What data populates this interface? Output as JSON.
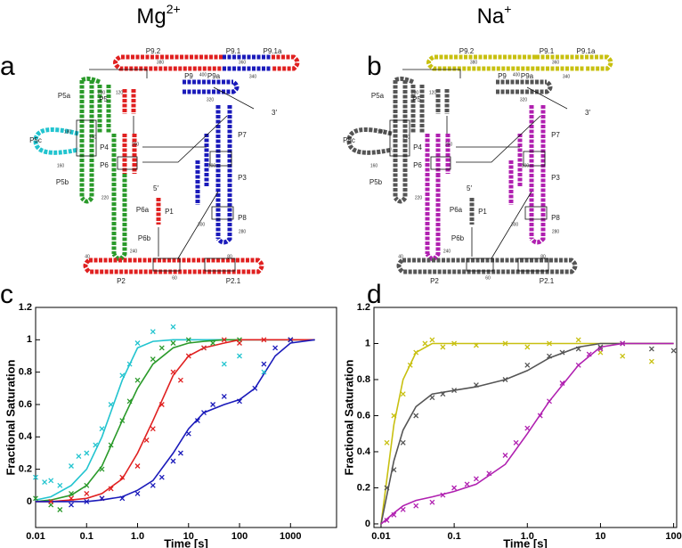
{
  "panels": [
    {
      "label": "a",
      "title": {
        "base": "Mg",
        "sup": "2+"
      },
      "labels": [
        "P9.2",
        "P9.1",
        "P9.1a",
        "P5a",
        "P5",
        "P5c",
        "P4",
        "P6",
        "P5b",
        "P6a",
        "P6b",
        "P9",
        "P9a",
        "P7",
        "P3",
        "P8",
        "P1",
        "5′",
        "3′",
        "P2",
        "P2.1",
        "380",
        "360",
        "400",
        "340",
        "320",
        "200",
        "120",
        "180",
        "140",
        "160",
        "260",
        "220",
        "300",
        "280",
        "240",
        "40",
        "60",
        "80",
        "100"
      ]
    },
    {
      "label": "b",
      "title": {
        "base": "Na",
        "sup": "+"
      },
      "labels": [
        "P9.2",
        "P9.1",
        "P9.1a",
        "P5a",
        "P5",
        "P5c",
        "P4",
        "P6",
        "P5b",
        "P6a",
        "P6b",
        "P9",
        "P9a",
        "P7",
        "P3",
        "P8",
        "P1",
        "5′",
        "3′",
        "P2",
        "P2.1",
        "380",
        "360",
        "400",
        "340",
        "320",
        "200",
        "120",
        "180",
        "140",
        "160",
        "260",
        "220",
        "300",
        "280",
        "240",
        "40",
        "60",
        "80",
        "100"
      ]
    }
  ],
  "chart_data": [
    {
      "type": "scatter",
      "panel": "c",
      "x_label": "Time [s]",
      "y_label": "Fractional Saturation",
      "xscale": "log",
      "xlim": [
        0.01,
        8000
      ],
      "ylim": [
        -0.16,
        1.2
      ],
      "xticks": [
        0.01,
        0.1,
        {
          "value": 1,
          "label": "1.0"
        },
        10,
        100,
        1000
      ],
      "yticks": [
        0,
        0.2,
        0.4,
        0.6,
        0.8,
        1,
        1.2
      ],
      "series": [
        {
          "color": "#22c4cf",
          "style": "line",
          "x": [
            0.01,
            0.02,
            0.05,
            0.1,
            0.2,
            0.5,
            1,
            2,
            5,
            10,
            20,
            50,
            100,
            200,
            500,
            1000,
            3000
          ],
          "values": [
            0.01,
            0.03,
            0.1,
            0.2,
            0.4,
            0.75,
            0.95,
            0.99,
            1,
            1,
            1,
            1,
            1,
            1,
            1,
            1,
            1
          ]
        },
        {
          "color": "#2a9a2a",
          "style": "line",
          "x": [
            0.01,
            0.02,
            0.05,
            0.1,
            0.2,
            0.5,
            1,
            2,
            5,
            10,
            20,
            50,
            100,
            200,
            500,
            1000,
            3000
          ],
          "values": [
            0,
            0.01,
            0.04,
            0.1,
            0.22,
            0.5,
            0.7,
            0.85,
            0.95,
            0.98,
            0.99,
            1,
            1,
            1,
            1,
            1,
            1
          ]
        },
        {
          "color": "#e02020",
          "style": "line",
          "x": [
            0.01,
            0.02,
            0.05,
            0.1,
            0.2,
            0.5,
            1,
            2,
            5,
            10,
            20,
            50,
            100,
            200,
            500,
            1000,
            3000
          ],
          "values": [
            0,
            0,
            0.01,
            0.02,
            0.05,
            0.14,
            0.3,
            0.5,
            0.78,
            0.9,
            0.95,
            0.98,
            1,
            1,
            1,
            1,
            1
          ]
        },
        {
          "color": "#1a1aba",
          "style": "line",
          "x": [
            0.01,
            0.02,
            0.05,
            0.1,
            0.2,
            0.5,
            1,
            2,
            5,
            10,
            20,
            50,
            100,
            200,
            500,
            1000,
            3000
          ],
          "values": [
            0,
            0,
            0,
            0,
            0.01,
            0.03,
            0.07,
            0.13,
            0.3,
            0.45,
            0.55,
            0.6,
            0.63,
            0.7,
            0.9,
            0.98,
            1
          ]
        },
        {
          "color": "#22c4cf",
          "style": "marker",
          "x": [
            0.01,
            0.015,
            0.02,
            0.03,
            0.05,
            0.07,
            0.1,
            0.15,
            0.2,
            0.3,
            0.5,
            0.7,
            1,
            2,
            5,
            20,
            50,
            100,
            300,
            1000
          ],
          "values": [
            0.15,
            0.12,
            0.13,
            0.1,
            0.22,
            0.28,
            0.3,
            0.35,
            0.45,
            0.6,
            0.78,
            0.85,
            0.98,
            1.05,
            1.08,
            0.95,
            0.85,
            0.9,
            0.8,
            1
          ]
        },
        {
          "color": "#2a9a2a",
          "style": "marker",
          "x": [
            0.01,
            0.02,
            0.03,
            0.05,
            0.1,
            0.2,
            0.3,
            0.5,
            0.7,
            1,
            2,
            3,
            5,
            10,
            30,
            100,
            1000
          ],
          "values": [
            0.02,
            -0.02,
            -0.05,
            0.05,
            0.1,
            0.2,
            0.35,
            0.5,
            0.62,
            0.75,
            0.88,
            0.95,
            0.98,
            1,
            0.98,
            1,
            1
          ]
        },
        {
          "color": "#e02020",
          "style": "marker",
          "x": [
            0.02,
            0.05,
            0.1,
            0.2,
            0.3,
            0.5,
            1,
            1.5,
            2,
            3,
            5,
            7,
            10,
            20,
            50,
            100,
            300,
            1000
          ],
          "values": [
            0,
            0.02,
            0.05,
            0.02,
            0.08,
            0.15,
            0.22,
            0.38,
            0.45,
            0.6,
            0.8,
            0.75,
            0.9,
            0.95,
            1,
            0.98,
            1,
            1
          ]
        },
        {
          "color": "#1a1aba",
          "style": "marker",
          "x": [
            0.05,
            0.1,
            0.2,
            0.5,
            1,
            2,
            3,
            5,
            7,
            10,
            15,
            20,
            30,
            50,
            100,
            200,
            300,
            500,
            1000
          ],
          "values": [
            -0.02,
            0,
            0.02,
            0.02,
            0.05,
            0.1,
            0.15,
            0.25,
            0.3,
            0.42,
            0.5,
            0.55,
            0.6,
            0.65,
            0.62,
            0.7,
            0.85,
            0.95,
            1
          ]
        }
      ]
    },
    {
      "type": "scatter",
      "panel": "d",
      "x_label": "Time [s]",
      "y_label": "Fractional Saturation",
      "xscale": "log",
      "xlim": [
        0.008,
        110
      ],
      "ylim": [
        -0.02,
        1.2
      ],
      "xticks": [
        0.01,
        0.1,
        {
          "value": 1,
          "label": "1.0"
        },
        10,
        100
      ],
      "yticks": [
        0,
        0.2,
        0.4,
        0.6,
        0.8,
        1,
        1.2
      ],
      "series": [
        {
          "color": "#c8c010",
          "style": "line",
          "x": [
            0.01,
            0.015,
            0.02,
            0.03,
            0.05,
            0.1,
            0.2,
            0.5,
            1,
            2,
            5,
            10,
            20,
            50,
            100
          ],
          "values": [
            0,
            0.55,
            0.8,
            0.95,
            1,
            1,
            1,
            1,
            1,
            1,
            1,
            1,
            1,
            1,
            1
          ]
        },
        {
          "color": "#555555",
          "style": "line",
          "x": [
            0.01,
            0.015,
            0.02,
            0.03,
            0.05,
            0.1,
            0.2,
            0.5,
            1,
            2,
            5,
            10,
            20,
            50,
            100
          ],
          "values": [
            0,
            0.35,
            0.52,
            0.65,
            0.72,
            0.74,
            0.76,
            0.8,
            0.85,
            0.92,
            0.98,
            1,
            1,
            1,
            1
          ]
        },
        {
          "color": "#b020b0",
          "style": "line",
          "x": [
            0.01,
            0.015,
            0.02,
            0.03,
            0.05,
            0.1,
            0.2,
            0.5,
            1,
            2,
            5,
            10,
            20,
            50,
            100
          ],
          "values": [
            0,
            0.06,
            0.1,
            0.13,
            0.15,
            0.18,
            0.22,
            0.33,
            0.5,
            0.68,
            0.88,
            0.98,
            1,
            1,
            1
          ]
        },
        {
          "color": "#c8c010",
          "style": "marker",
          "x": [
            0.012,
            0.015,
            0.02,
            0.025,
            0.03,
            0.04,
            0.05,
            0.07,
            0.1,
            0.2,
            0.5,
            1,
            2,
            5,
            10,
            20,
            50
          ],
          "values": [
            0.45,
            0.6,
            0.72,
            0.88,
            0.95,
            1,
            1.02,
            0.98,
            1,
            0.99,
            1,
            0.98,
            1,
            1.02,
            0.95,
            0.93,
            0.9
          ]
        },
        {
          "color": "#555555",
          "style": "marker",
          "x": [
            0.012,
            0.015,
            0.02,
            0.03,
            0.05,
            0.07,
            0.1,
            0.2,
            0.5,
            1,
            2,
            3,
            5,
            10,
            20,
            50,
            100
          ],
          "values": [
            0.2,
            0.3,
            0.45,
            0.6,
            0.7,
            0.72,
            0.74,
            0.77,
            0.8,
            0.88,
            0.93,
            0.95,
            0.97,
            0.98,
            1,
            0.97,
            0.96
          ]
        },
        {
          "color": "#b020b0",
          "style": "marker",
          "x": [
            0.012,
            0.015,
            0.02,
            0.03,
            0.05,
            0.07,
            0.1,
            0.15,
            0.2,
            0.3,
            0.5,
            0.7,
            1,
            1.5,
            2,
            3,
            5,
            7,
            10,
            20
          ],
          "values": [
            0.02,
            0.05,
            0.08,
            0.1,
            0.12,
            0.16,
            0.2,
            0.22,
            0.25,
            0.28,
            0.38,
            0.45,
            0.53,
            0.6,
            0.68,
            0.78,
            0.88,
            0.94,
            0.97,
            1
          ]
        }
      ]
    }
  ]
}
